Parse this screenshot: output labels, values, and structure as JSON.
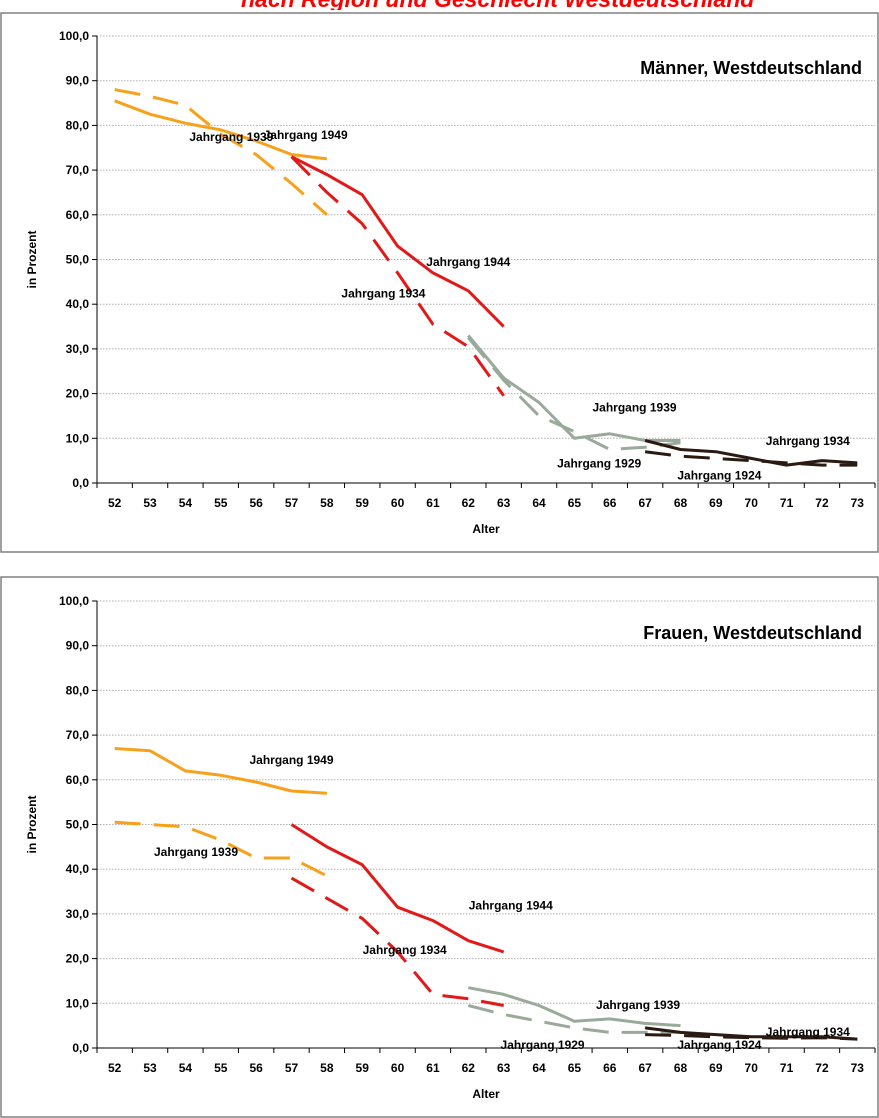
{
  "page_title": "nach Region und Geschlecht Westdeutschland",
  "chart_data": [
    {
      "type": "line",
      "title": "Männer, Westdeutschland",
      "xlabel": "Alter",
      "ylabel": "in Prozent",
      "ylim": [
        0,
        100
      ],
      "yticks": [
        "0,0",
        "10,0",
        "20,0",
        "30,0",
        "40,0",
        "50,0",
        "60,0",
        "70,0",
        "80,0",
        "90,0",
        "100,0"
      ],
      "categories": [
        "52",
        "53",
        "54",
        "55",
        "56",
        "57",
        "58",
        "59",
        "60",
        "61",
        "62",
        "63",
        "64",
        "65",
        "66",
        "67",
        "68",
        "69",
        "70",
        "71",
        "72",
        "73"
      ],
      "grid": true,
      "series": [
        {
          "color": "#f7a11a",
          "dash": false,
          "x": [
            52,
            53,
            54,
            55,
            56,
            57,
            58
          ],
          "values": [
            85.5,
            82.5,
            80.5,
            79.0,
            76.5,
            73.5,
            72.5
          ]
        },
        {
          "color": "#f7a11a",
          "dash": true,
          "x": [
            52,
            53,
            54,
            55,
            56,
            57,
            58
          ],
          "values": [
            88.0,
            86.5,
            84.5,
            78.0,
            73.5,
            67.0,
            60.0
          ]
        },
        {
          "color": "#e31818",
          "dash": false,
          "x": [
            57,
            58,
            59,
            60,
            61,
            62,
            63
          ],
          "values": [
            73.0,
            69.0,
            64.5,
            53.0,
            47.0,
            43.0,
            35.0
          ]
        },
        {
          "color": "#e31818",
          "dash": true,
          "x": [
            57,
            58,
            59,
            60,
            61,
            62,
            63
          ],
          "values": [
            73.0,
            65.0,
            58.0,
            47.0,
            35.5,
            30.5,
            19.5
          ]
        },
        {
          "color": "#9aaa9a",
          "dash": false,
          "x": [
            62,
            63,
            64,
            65,
            66,
            67,
            68
          ],
          "values": [
            33.0,
            23.5,
            18.0,
            10.0,
            11.0,
            9.5,
            9.5
          ]
        },
        {
          "color": "#9aaa9a",
          "dash": true,
          "x": [
            62,
            63,
            64,
            65,
            66,
            67,
            68
          ],
          "values": [
            32.5,
            23.0,
            15.0,
            11.5,
            7.5,
            8.0,
            9.0
          ]
        },
        {
          "color": "#2a1a12",
          "dash": false,
          "x": [
            67,
            68,
            69,
            70,
            71,
            72,
            73
          ],
          "values": [
            9.5,
            7.5,
            7.0,
            5.5,
            4.0,
            5.0,
            4.5
          ]
        },
        {
          "color": "#2a1a12",
          "dash": true,
          "x": [
            67,
            68,
            69,
            70,
            71,
            72,
            73
          ],
          "values": [
            7.0,
            6.0,
            5.5,
            5.0,
            4.5,
            4.0,
            4.0
          ]
        }
      ],
      "annotations": [
        {
          "text": "Jahrgang 1939",
          "x": 55.3,
          "y": 76.5
        },
        {
          "text": "Jahrgang 1949",
          "x": 57.4,
          "y": 77.0
        },
        {
          "text": "Jahrgang 1944",
          "x": 62.0,
          "y": 48.5
        },
        {
          "text": "Jahrgang 1934",
          "x": 59.6,
          "y": 41.5
        },
        {
          "text": "Jahrgang 1939",
          "x": 66.7,
          "y": 16.0
        },
        {
          "text": "Jahrgang 1929",
          "x": 65.7,
          "y": 3.5
        },
        {
          "text": "Jahrgang 1934",
          "x": 71.6,
          "y": 8.5
        },
        {
          "text": "Jahrgang 1924",
          "x": 69.1,
          "y": 0.8
        }
      ]
    },
    {
      "type": "line",
      "title": "Frauen, Westdeutschland",
      "xlabel": "Alter",
      "ylabel": "in Prozent",
      "ylim": [
        0,
        100
      ],
      "yticks": [
        "0,0",
        "10,0",
        "20,0",
        "30,0",
        "40,0",
        "50,0",
        "60,0",
        "70,0",
        "80,0",
        "90,0",
        "100,0"
      ],
      "categories": [
        "52",
        "53",
        "54",
        "55",
        "56",
        "57",
        "58",
        "59",
        "60",
        "61",
        "62",
        "63",
        "64",
        "65",
        "66",
        "67",
        "68",
        "69",
        "70",
        "71",
        "72",
        "73"
      ],
      "grid": true,
      "series": [
        {
          "color": "#f7a11a",
          "dash": false,
          "x": [
            52,
            53,
            54,
            55,
            56,
            57,
            58
          ],
          "values": [
            67.0,
            66.5,
            62.0,
            61.0,
            59.5,
            57.5,
            57.0
          ]
        },
        {
          "color": "#f7a11a",
          "dash": true,
          "x": [
            52,
            53,
            54,
            55,
            56,
            57,
            58
          ],
          "values": [
            50.5,
            50.0,
            49.5,
            46.5,
            42.5,
            42.5,
            38.5
          ]
        },
        {
          "color": "#e31818",
          "dash": false,
          "x": [
            57,
            58,
            59,
            60,
            61,
            62,
            63
          ],
          "values": [
            50.0,
            45.0,
            41.0,
            31.5,
            28.5,
            24.0,
            21.5
          ]
        },
        {
          "color": "#e31818",
          "dash": true,
          "x": [
            57,
            58,
            59,
            60,
            61,
            62,
            63
          ],
          "values": [
            38.0,
            33.5,
            29.0,
            21.5,
            12.0,
            11.0,
            9.5
          ]
        },
        {
          "color": "#9aaa9a",
          "dash": false,
          "x": [
            62,
            63,
            64,
            65,
            66,
            67,
            68
          ],
          "values": [
            13.5,
            12.0,
            9.5,
            6.0,
            6.5,
            5.5,
            5.0
          ]
        },
        {
          "color": "#9aaa9a",
          "dash": true,
          "x": [
            62,
            63,
            64,
            65,
            66,
            67,
            68
          ],
          "values": [
            9.5,
            7.5,
            6.0,
            4.5,
            3.5,
            3.5,
            3.5
          ]
        },
        {
          "color": "#2a1a12",
          "dash": false,
          "x": [
            67,
            68,
            69,
            70,
            71,
            72,
            73
          ],
          "values": [
            4.5,
            3.5,
            3.0,
            2.5,
            2.5,
            2.5,
            2.0
          ]
        },
        {
          "color": "#2a1a12",
          "dash": true,
          "x": [
            67,
            68,
            69,
            70,
            71,
            72,
            73
          ],
          "values": [
            3.0,
            2.8,
            2.5,
            2.3,
            2.2,
            2.3,
            2.0
          ]
        }
      ],
      "annotations": [
        {
          "text": "Jahrgang 1949",
          "x": 57.0,
          "y": 63.5
        },
        {
          "text": "Jahrgang 1939",
          "x": 54.3,
          "y": 43.0
        },
        {
          "text": "Jahrgang 1944",
          "x": 63.2,
          "y": 31.0
        },
        {
          "text": "Jahrgang 1934",
          "x": 60.2,
          "y": 21.0
        },
        {
          "text": "Jahrgang 1939",
          "x": 66.8,
          "y": 8.7
        },
        {
          "text": "Jahrgang 1929",
          "x": 64.1,
          "y": -0.2
        },
        {
          "text": "Jahrgang 1934",
          "x": 71.6,
          "y": 2.7
        },
        {
          "text": "Jahrgang 1924",
          "x": 69.1,
          "y": -0.2
        }
      ]
    }
  ]
}
